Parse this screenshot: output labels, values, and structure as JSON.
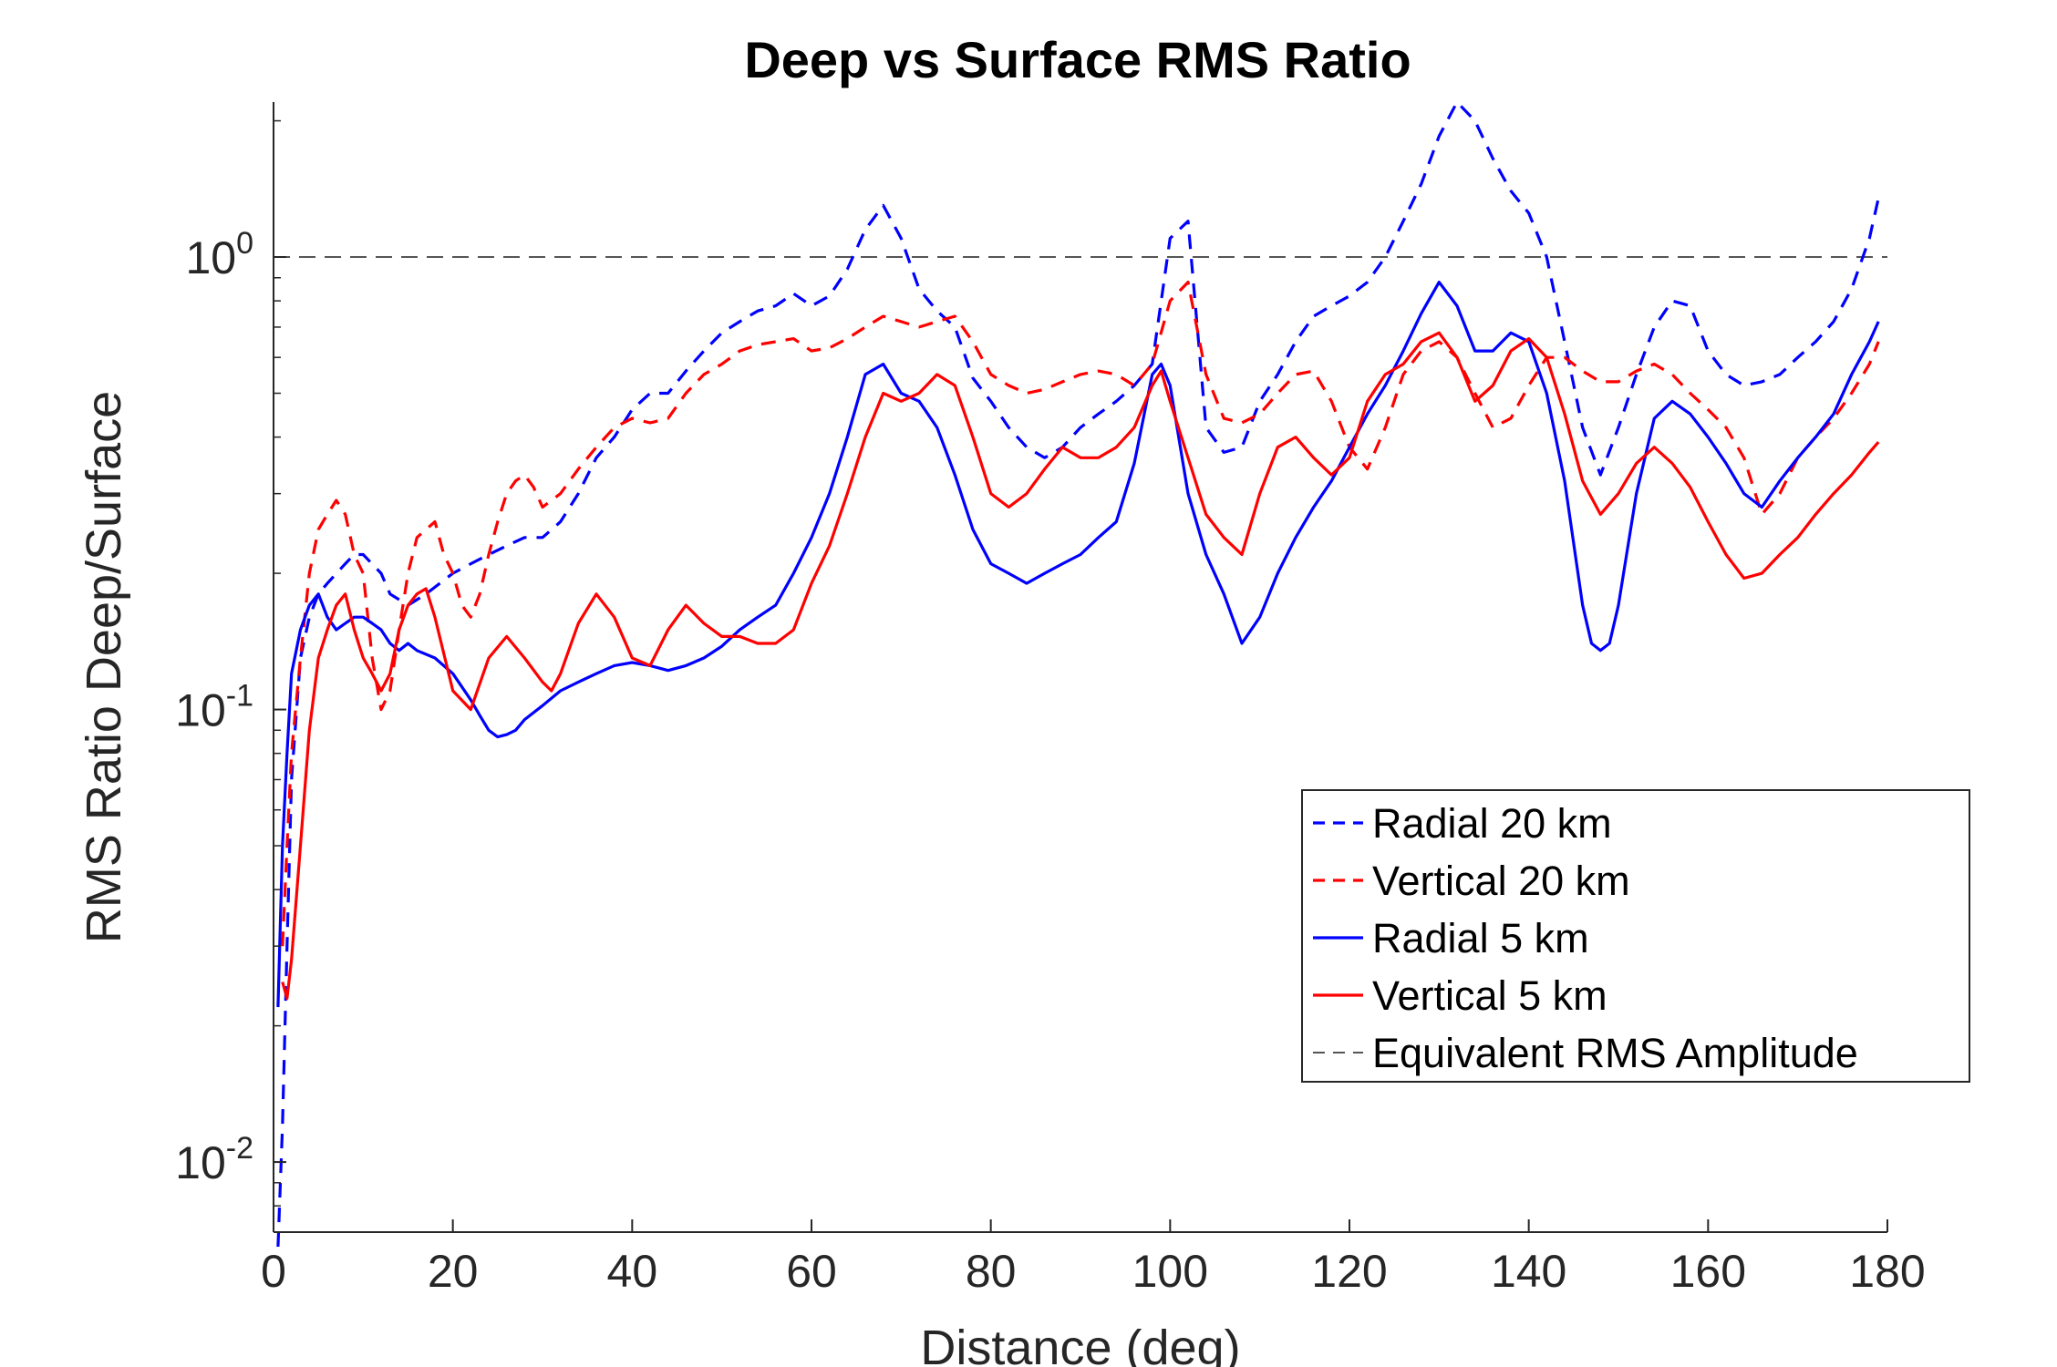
{
  "chart_data": {
    "type": "line",
    "title": "Deep vs Surface RMS Ratio",
    "xlabel": "Distance (deg)",
    "ylabel": "RMS Ratio Deep/Surface",
    "xlim": [
      0,
      180
    ],
    "ylim": [
      0.007,
      2.2
    ],
    "yscale": "log",
    "grid": false,
    "legend_position": "bottom-right",
    "x_ticks": [
      "0",
      "20",
      "40",
      "60",
      "80",
      "100",
      "120",
      "140",
      "160",
      "180"
    ],
    "y_ticks": [
      {
        "value": 0.01,
        "base": "10",
        "exp": "-2"
      },
      {
        "value": 0.1,
        "base": "10",
        "exp": "-1"
      },
      {
        "value": 1,
        "base": "10",
        "exp": "0"
      }
    ],
    "reference_line": {
      "name": "Equivalent RMS Amplitude",
      "y": 1,
      "color": "#555555",
      "style": "dashed"
    },
    "series": [
      {
        "name": "Radial 20 km",
        "color": "#0000ff",
        "style": "dashed",
        "x": [
          0.5,
          1,
          1.5,
          2,
          3,
          4,
          5,
          6,
          8,
          9,
          10,
          12,
          13,
          15,
          17,
          20,
          22,
          24,
          26,
          28,
          30,
          32,
          34,
          36,
          38,
          40,
          42,
          44,
          46,
          48,
          50,
          52,
          54,
          56,
          58,
          60,
          62,
          64,
          66,
          68,
          70,
          72,
          74,
          76,
          78,
          80,
          82,
          84,
          86,
          88,
          90,
          92,
          94,
          96,
          98,
          100,
          102,
          104,
          106,
          108,
          110,
          112,
          114,
          116,
          118,
          120,
          122,
          124,
          126,
          128,
          130,
          132,
          134,
          136,
          138,
          140,
          142,
          144,
          146,
          148,
          150,
          152,
          154,
          156,
          158,
          160,
          162,
          164,
          166,
          168,
          170,
          172,
          174,
          176,
          178,
          179
        ],
        "y": [
          0.0065,
          0.012,
          0.03,
          0.07,
          0.13,
          0.16,
          0.18,
          0.19,
          0.21,
          0.22,
          0.22,
          0.2,
          0.18,
          0.17,
          0.18,
          0.2,
          0.21,
          0.22,
          0.23,
          0.24,
          0.24,
          0.26,
          0.3,
          0.36,
          0.4,
          0.46,
          0.5,
          0.5,
          0.56,
          0.62,
          0.68,
          0.72,
          0.76,
          0.78,
          0.83,
          0.78,
          0.82,
          0.94,
          1.15,
          1.3,
          1.1,
          0.85,
          0.76,
          0.7,
          0.54,
          0.48,
          0.42,
          0.38,
          0.36,
          0.38,
          0.42,
          0.45,
          0.48,
          0.52,
          0.58,
          1.1,
          1.2,
          0.42,
          0.37,
          0.38,
          0.48,
          0.55,
          0.65,
          0.74,
          0.78,
          0.82,
          0.88,
          1.0,
          1.2,
          1.45,
          1.85,
          2.2,
          2.0,
          1.65,
          1.4,
          1.25,
          1.0,
          0.65,
          0.42,
          0.33,
          0.42,
          0.55,
          0.7,
          0.8,
          0.78,
          0.62,
          0.55,
          0.52,
          0.53,
          0.55,
          0.6,
          0.65,
          0.72,
          0.85,
          1.1,
          1.35
        ]
      },
      {
        "name": "Vertical 20 km",
        "color": "#ff0000",
        "style": "dashed",
        "x": [
          1,
          1.5,
          2,
          3,
          4,
          5,
          6,
          7,
          8,
          9,
          10,
          11,
          12,
          13,
          14,
          15,
          16,
          17,
          18,
          19,
          20,
          21,
          22,
          23,
          24,
          25,
          26,
          27,
          28,
          29,
          30,
          32,
          34,
          36,
          38,
          40,
          42,
          44,
          46,
          48,
          50,
          52,
          54,
          56,
          58,
          60,
          62,
          64,
          66,
          68,
          70,
          72,
          74,
          76,
          78,
          80,
          82,
          84,
          86,
          88,
          90,
          92,
          94,
          96,
          98,
          100,
          102,
          104,
          106,
          108,
          110,
          112,
          114,
          116,
          118,
          120,
          122,
          124,
          126,
          128,
          130,
          132,
          134,
          136,
          138,
          140,
          142,
          144,
          146,
          148,
          150,
          152,
          154,
          156,
          158,
          160,
          162,
          164,
          166,
          168,
          170,
          172,
          174,
          176,
          178,
          179
        ],
        "y": [
          0.03,
          0.05,
          0.08,
          0.13,
          0.2,
          0.25,
          0.27,
          0.29,
          0.27,
          0.22,
          0.2,
          0.13,
          0.1,
          0.11,
          0.15,
          0.2,
          0.24,
          0.25,
          0.26,
          0.22,
          0.2,
          0.17,
          0.16,
          0.18,
          0.22,
          0.26,
          0.3,
          0.32,
          0.33,
          0.31,
          0.28,
          0.3,
          0.34,
          0.38,
          0.42,
          0.44,
          0.43,
          0.44,
          0.5,
          0.55,
          0.58,
          0.62,
          0.64,
          0.65,
          0.66,
          0.62,
          0.63,
          0.66,
          0.7,
          0.74,
          0.72,
          0.7,
          0.72,
          0.74,
          0.65,
          0.55,
          0.52,
          0.5,
          0.51,
          0.53,
          0.55,
          0.56,
          0.55,
          0.52,
          0.58,
          0.8,
          0.88,
          0.55,
          0.44,
          0.43,
          0.45,
          0.5,
          0.55,
          0.56,
          0.48,
          0.38,
          0.34,
          0.42,
          0.55,
          0.62,
          0.65,
          0.6,
          0.5,
          0.42,
          0.44,
          0.52,
          0.6,
          0.6,
          0.56,
          0.53,
          0.53,
          0.56,
          0.58,
          0.55,
          0.5,
          0.46,
          0.42,
          0.36,
          0.27,
          0.3,
          0.36,
          0.4,
          0.44,
          0.5,
          0.58,
          0.65
        ]
      },
      {
        "name": "Radial 5 km",
        "color": "#0000ff",
        "style": "solid",
        "x": [
          0.5,
          1,
          1.5,
          2,
          3,
          4,
          5,
          6,
          7,
          8,
          9,
          10,
          11,
          12,
          13,
          14,
          15,
          16,
          18,
          20,
          22,
          23,
          24,
          25,
          26,
          27,
          28,
          30,
          32,
          34,
          36,
          38,
          40,
          42,
          44,
          46,
          48,
          50,
          52,
          54,
          56,
          58,
          60,
          62,
          64,
          66,
          68,
          70,
          72,
          74,
          76,
          78,
          80,
          82,
          84,
          86,
          88,
          90,
          92,
          94,
          96,
          98,
          99,
          100,
          102,
          104,
          106,
          108,
          110,
          112,
          114,
          116,
          118,
          120,
          122,
          124,
          126,
          128,
          130,
          132,
          134,
          136,
          138,
          140,
          142,
          144,
          146,
          147,
          148,
          149,
          150,
          152,
          154,
          156,
          158,
          160,
          162,
          164,
          166,
          168,
          170,
          172,
          174,
          176,
          178,
          179
        ],
        "y": [
          0.022,
          0.05,
          0.08,
          0.12,
          0.15,
          0.17,
          0.18,
          0.16,
          0.15,
          0.155,
          0.16,
          0.16,
          0.155,
          0.15,
          0.14,
          0.135,
          0.14,
          0.135,
          0.13,
          0.12,
          0.105,
          0.097,
          0.09,
          0.087,
          0.088,
          0.09,
          0.095,
          0.102,
          0.11,
          0.115,
          0.12,
          0.125,
          0.127,
          0.125,
          0.122,
          0.125,
          0.13,
          0.138,
          0.15,
          0.16,
          0.17,
          0.2,
          0.24,
          0.3,
          0.4,
          0.55,
          0.58,
          0.5,
          0.48,
          0.42,
          0.33,
          0.25,
          0.21,
          0.2,
          0.19,
          0.2,
          0.21,
          0.22,
          0.24,
          0.26,
          0.35,
          0.55,
          0.58,
          0.52,
          0.3,
          0.22,
          0.18,
          0.14,
          0.16,
          0.2,
          0.24,
          0.28,
          0.32,
          0.38,
          0.45,
          0.52,
          0.62,
          0.75,
          0.88,
          0.78,
          0.62,
          0.62,
          0.68,
          0.65,
          0.5,
          0.32,
          0.17,
          0.14,
          0.135,
          0.14,
          0.17,
          0.3,
          0.44,
          0.48,
          0.45,
          0.4,
          0.35,
          0.3,
          0.28,
          0.32,
          0.36,
          0.4,
          0.45,
          0.55,
          0.65,
          0.72
        ]
      },
      {
        "name": "Vertical 5 km",
        "color": "#ff0000",
        "style": "solid",
        "x": [
          1,
          1.5,
          2,
          3,
          4,
          5,
          6,
          7,
          8,
          9,
          10,
          11,
          12,
          13,
          14,
          15,
          16,
          17,
          18,
          20,
          22,
          24,
          26,
          28,
          30,
          31,
          32,
          34,
          36,
          38,
          40,
          42,
          44,
          46,
          48,
          50,
          52,
          54,
          56,
          58,
          60,
          62,
          64,
          66,
          68,
          70,
          72,
          74,
          76,
          78,
          80,
          82,
          84,
          86,
          88,
          90,
          92,
          94,
          96,
          98,
          99,
          100,
          102,
          104,
          106,
          108,
          110,
          112,
          114,
          116,
          118,
          120,
          122,
          124,
          126,
          128,
          130,
          132,
          134,
          136,
          138,
          140,
          142,
          144,
          146,
          148,
          150,
          152,
          154,
          156,
          158,
          160,
          162,
          164,
          166,
          168,
          170,
          172,
          174,
          176,
          178,
          179
        ],
        "y": [
          0.025,
          0.023,
          0.028,
          0.05,
          0.09,
          0.13,
          0.15,
          0.17,
          0.18,
          0.15,
          0.13,
          0.12,
          0.11,
          0.12,
          0.15,
          0.17,
          0.18,
          0.185,
          0.16,
          0.11,
          0.1,
          0.13,
          0.145,
          0.13,
          0.115,
          0.11,
          0.12,
          0.155,
          0.18,
          0.16,
          0.13,
          0.125,
          0.15,
          0.17,
          0.155,
          0.145,
          0.145,
          0.14,
          0.14,
          0.15,
          0.19,
          0.23,
          0.3,
          0.4,
          0.5,
          0.48,
          0.5,
          0.55,
          0.52,
          0.4,
          0.3,
          0.28,
          0.3,
          0.34,
          0.38,
          0.36,
          0.36,
          0.38,
          0.42,
          0.52,
          0.56,
          0.48,
          0.36,
          0.27,
          0.24,
          0.22,
          0.3,
          0.38,
          0.4,
          0.36,
          0.33,
          0.36,
          0.48,
          0.55,
          0.58,
          0.65,
          0.68,
          0.6,
          0.48,
          0.52,
          0.62,
          0.66,
          0.6,
          0.45,
          0.32,
          0.27,
          0.3,
          0.35,
          0.38,
          0.35,
          0.31,
          0.26,
          0.22,
          0.195,
          0.2,
          0.22,
          0.24,
          0.27,
          0.3,
          0.33,
          0.37,
          0.39
        ]
      }
    ]
  }
}
